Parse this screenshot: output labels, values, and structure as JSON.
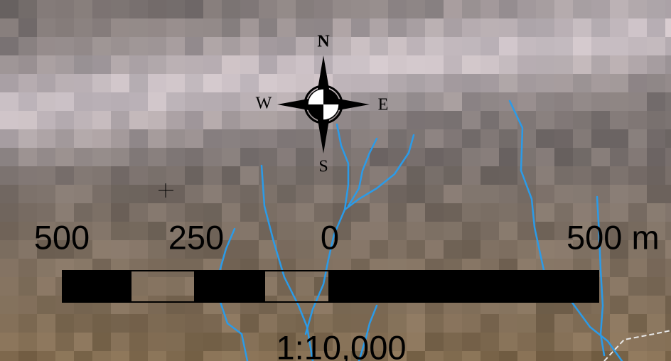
{
  "compass": {
    "north": "N",
    "east": "E",
    "south": "S",
    "west": "W"
  },
  "scale_bar": {
    "labels": [
      "500",
      "250",
      "0",
      "500 m"
    ],
    "ratio": "1:10,000"
  }
}
